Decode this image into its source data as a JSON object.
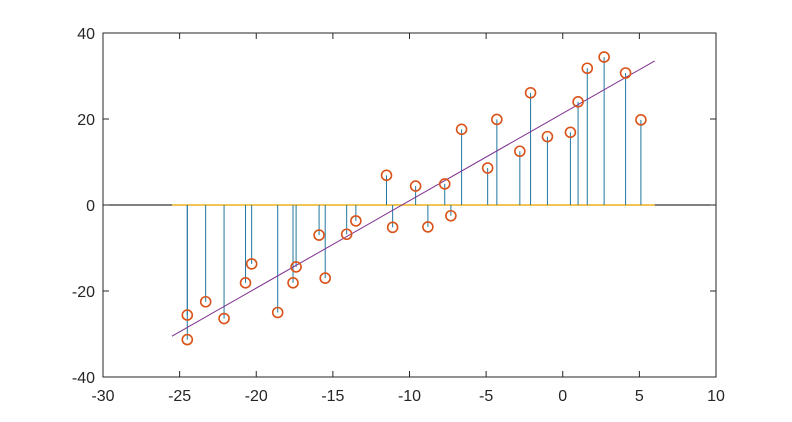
{
  "chart_data": {
    "type": "scatter",
    "title": "",
    "xlabel": "",
    "ylabel": "",
    "xlim": [
      -30,
      10
    ],
    "ylim": [
      -40,
      40
    ],
    "xticks": [
      -30,
      -25,
      -20,
      -15,
      -10,
      -5,
      0,
      5,
      10
    ],
    "yticks": [
      -40,
      -20,
      0,
      20,
      40
    ],
    "grid": false,
    "legend": "none",
    "colors": {
      "axes": "#262626",
      "stems": "#1f77a0",
      "markers": "#d95319",
      "baseline": "#edb120",
      "fit_line": "#7e2f8e",
      "zero_line": "#000000"
    },
    "baseline_range": [
      -25.5,
      6.0
    ],
    "fit_line": {
      "x": [
        -25.5,
        6.0
      ],
      "y": [
        -30.5,
        33.5
      ]
    },
    "points": [
      {
        "x": -24.5,
        "y": -25.6
      },
      {
        "x": -24.5,
        "y": -31.3
      },
      {
        "x": -23.3,
        "y": -22.5
      },
      {
        "x": -22.1,
        "y": -26.4
      },
      {
        "x": -20.7,
        "y": -18.1
      },
      {
        "x": -20.3,
        "y": -13.7
      },
      {
        "x": -18.6,
        "y": -25.0
      },
      {
        "x": -17.6,
        "y": -18.1
      },
      {
        "x": -17.4,
        "y": -14.4
      },
      {
        "x": -15.9,
        "y": -7.0
      },
      {
        "x": -15.5,
        "y": -17.0
      },
      {
        "x": -14.1,
        "y": -6.8
      },
      {
        "x": -13.5,
        "y": -3.7
      },
      {
        "x": -11.5,
        "y": 6.9
      },
      {
        "x": -11.1,
        "y": -5.2
      },
      {
        "x": -9.6,
        "y": 4.4
      },
      {
        "x": -8.8,
        "y": -5.1
      },
      {
        "x": -7.7,
        "y": 4.9
      },
      {
        "x": -7.3,
        "y": -2.5
      },
      {
        "x": -6.6,
        "y": 17.6
      },
      {
        "x": -4.9,
        "y": 8.6
      },
      {
        "x": -4.3,
        "y": 19.9
      },
      {
        "x": -2.8,
        "y": 12.5
      },
      {
        "x": -2.1,
        "y": 26.1
      },
      {
        "x": -1.0,
        "y": 15.9
      },
      {
        "x": 0.5,
        "y": 16.9
      },
      {
        "x": 1.0,
        "y": 24.0
      },
      {
        "x": 1.6,
        "y": 31.8
      },
      {
        "x": 2.7,
        "y": 34.4
      },
      {
        "x": 4.1,
        "y": 30.7
      },
      {
        "x": 5.1,
        "y": 19.8
      }
    ]
  }
}
